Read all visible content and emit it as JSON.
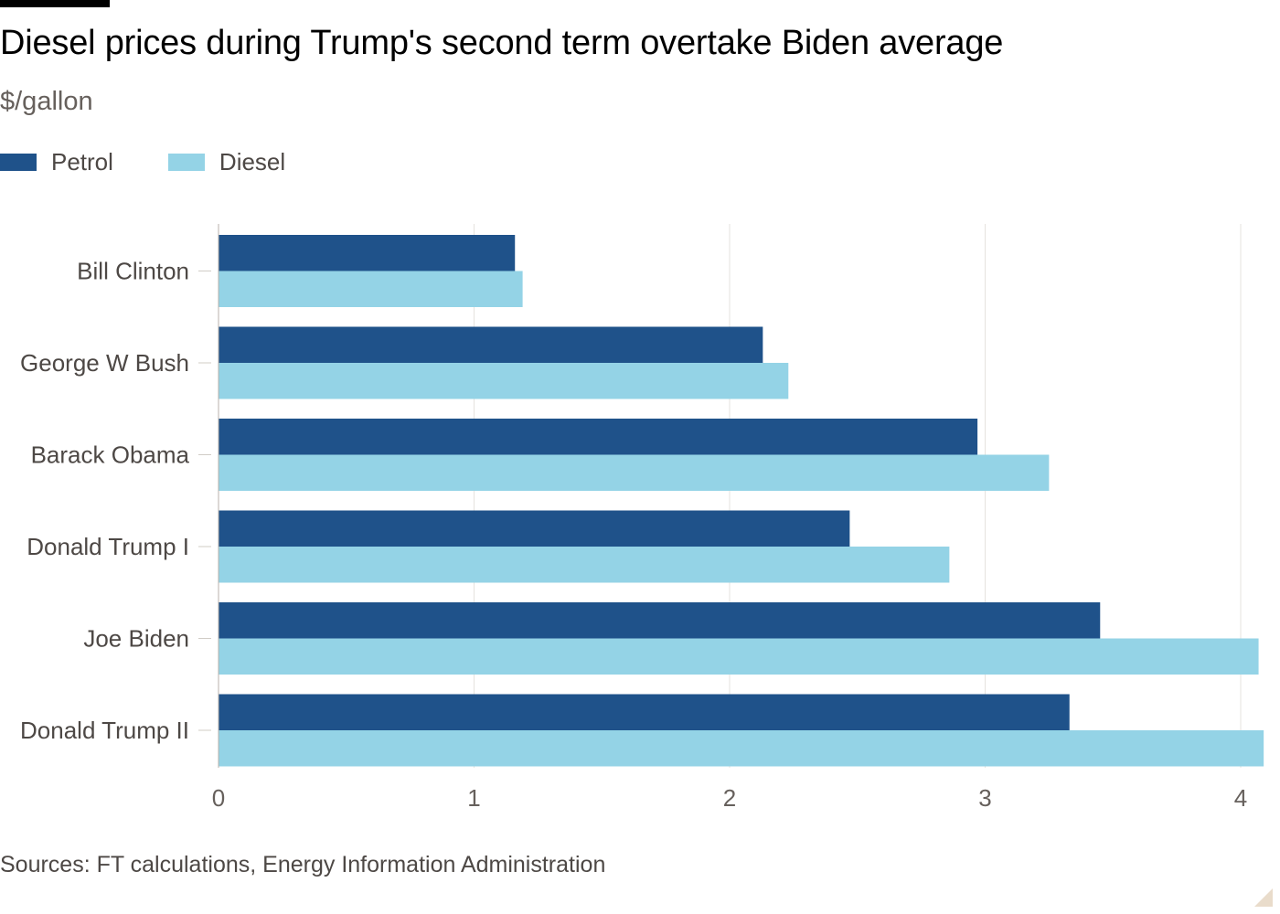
{
  "title": "Diesel prices during Trump's second term overtake Biden average",
  "subtitle": "$/gallon",
  "source": "Sources: FT calculations, Energy Information Administration",
  "colors": {
    "petrol": "#1f528a",
    "diesel": "#94d3e6",
    "grid": "#e6e3df",
    "axis_text": "#66605c",
    "category_text": "#4d4845"
  },
  "chart_data": {
    "type": "bar",
    "orientation": "horizontal",
    "title": "Diesel prices during Trump's second term overtake Biden average",
    "subtitle": "$/gallon",
    "categories": [
      "Bill Clinton",
      "George W Bush",
      "Barack Obama",
      "Donald Trump I",
      "Joe Biden",
      "Donald Trump II"
    ],
    "series": [
      {
        "name": "Petrol",
        "values": [
          1.16,
          2.13,
          2.97,
          2.47,
          3.45,
          3.33
        ]
      },
      {
        "name": "Diesel",
        "values": [
          1.19,
          2.23,
          3.25,
          2.86,
          4.07,
          4.09
        ]
      }
    ],
    "xlim": [
      0,
      4.1
    ],
    "xticks": [
      0,
      1,
      2,
      3,
      4
    ],
    "xtick_labels": [
      "0",
      "1",
      "2",
      "3",
      "4"
    ],
    "grid": true,
    "legend_position": "top-left"
  }
}
